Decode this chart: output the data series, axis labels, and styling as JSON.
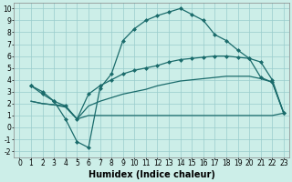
{
  "xlabel": "Humidex (Indice chaleur)",
  "bg_color": "#cceee8",
  "line_color": "#1a6b6b",
  "grid_color": "#99cccc",
  "xlim": [
    -0.5,
    23.5
  ],
  "ylim": [
    -2.5,
    10.5
  ],
  "xticks": [
    0,
    1,
    2,
    3,
    4,
    5,
    6,
    7,
    8,
    9,
    10,
    11,
    12,
    13,
    14,
    15,
    16,
    17,
    18,
    19,
    20,
    21,
    22,
    23
  ],
  "yticks": [
    -2,
    -1,
    0,
    1,
    2,
    3,
    4,
    5,
    6,
    7,
    8,
    9,
    10
  ],
  "curve1_x": [
    1,
    2,
    3,
    4,
    5,
    6,
    7,
    8,
    9,
    10,
    11,
    12,
    13,
    14,
    15,
    16,
    17,
    18,
    19,
    20,
    21,
    22,
    23
  ],
  "curve1_y": [
    3.5,
    3.0,
    2.2,
    0.7,
    -1.2,
    -1.7,
    3.3,
    4.5,
    7.3,
    8.3,
    9.0,
    9.4,
    9.7,
    10.0,
    9.5,
    9.0,
    7.8,
    7.3,
    6.5,
    5.8,
    4.2,
    3.8,
    1.2
  ],
  "curve2_x": [
    1,
    2,
    3,
    4,
    5,
    6,
    7,
    8,
    9,
    10,
    11,
    12,
    13,
    14,
    15,
    16,
    17,
    18,
    19,
    20,
    21,
    22,
    23
  ],
  "curve2_y": [
    3.5,
    2.8,
    2.2,
    1.8,
    0.7,
    2.8,
    3.5,
    4.0,
    4.5,
    4.8,
    5.0,
    5.2,
    5.5,
    5.7,
    5.8,
    5.9,
    6.0,
    6.0,
    5.9,
    5.8,
    5.5,
    4.0,
    1.2
  ],
  "curve3_x": [
    1,
    2,
    3,
    4,
    5,
    6,
    7,
    8,
    9,
    10,
    11,
    12,
    13,
    14,
    15,
    16,
    17,
    18,
    19,
    20,
    21,
    22,
    23
  ],
  "curve3_y": [
    2.2,
    2.0,
    1.9,
    1.8,
    0.7,
    1.8,
    2.2,
    2.5,
    2.8,
    3.0,
    3.2,
    3.5,
    3.7,
    3.9,
    4.0,
    4.1,
    4.2,
    4.3,
    4.3,
    4.3,
    4.1,
    3.8,
    1.2
  ],
  "curve4_x": [
    1,
    2,
    3,
    4,
    5,
    6,
    7,
    8,
    9,
    10,
    11,
    12,
    13,
    14,
    15,
    16,
    17,
    18,
    19,
    20,
    21,
    22,
    23
  ],
  "curve4_y": [
    2.2,
    2.0,
    1.9,
    1.7,
    0.7,
    1.0,
    1.0,
    1.0,
    1.0,
    1.0,
    1.0,
    1.0,
    1.0,
    1.0,
    1.0,
    1.0,
    1.0,
    1.0,
    1.0,
    1.0,
    1.0,
    1.0,
    1.2
  ],
  "markersize": 2.5,
  "linewidth": 0.9,
  "xlabel_fontsize": 7,
  "tick_fontsize": 5.5
}
